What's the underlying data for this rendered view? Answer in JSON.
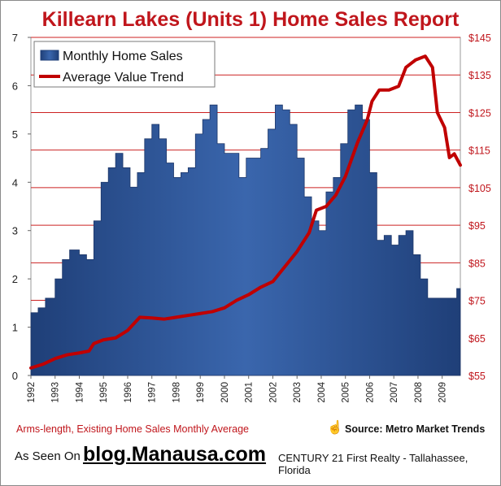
{
  "chart_data": {
    "type": "bar+line",
    "title": "Killearn Lakes (Units 1) Home Sales Report",
    "legend": [
      "Monthly Home Sales",
      "Average Value Trend"
    ],
    "legend_position": "top-left",
    "x_tick_labels": [
      "1992",
      "1993",
      "1994",
      "1995",
      "1996",
      "1997",
      "1998",
      "1999",
      "2000",
      "2001",
      "2002",
      "2003",
      "2004",
      "2005",
      "2006",
      "2007",
      "2008",
      "2009"
    ],
    "x_range": [
      1992.0,
      2009.75
    ],
    "y_left_ticks": [
      "0",
      "1",
      "2",
      "3",
      "4",
      "5",
      "6",
      "7"
    ],
    "y_left_range": [
      0,
      7
    ],
    "y_right_ticks": [
      "$55",
      "$65",
      "$75",
      "$85",
      "$95",
      "$105",
      "$115",
      "$125",
      "$135",
      "$145"
    ],
    "y_right_range": [
      55,
      145
    ],
    "gridlines": "horizontal, right axis",
    "series": [
      {
        "name": "Monthly Home Sales",
        "kind": "area",
        "color": "#2f5597",
        "points": [
          [
            1992.0,
            1.3
          ],
          [
            1992.3,
            1.4
          ],
          [
            1992.6,
            1.6
          ],
          [
            1993.0,
            2.0
          ],
          [
            1993.3,
            2.4
          ],
          [
            1993.6,
            2.6
          ],
          [
            1994.0,
            2.5
          ],
          [
            1994.3,
            2.4
          ],
          [
            1994.6,
            3.2
          ],
          [
            1994.9,
            4.0
          ],
          [
            1995.2,
            4.3
          ],
          [
            1995.5,
            4.6
          ],
          [
            1995.8,
            4.3
          ],
          [
            1996.1,
            3.9
          ],
          [
            1996.4,
            4.2
          ],
          [
            1996.7,
            4.9
          ],
          [
            1997.0,
            5.2
          ],
          [
            1997.3,
            4.9
          ],
          [
            1997.6,
            4.4
          ],
          [
            1997.9,
            4.1
          ],
          [
            1998.2,
            4.2
          ],
          [
            1998.5,
            4.3
          ],
          [
            1998.8,
            5.0
          ],
          [
            1999.1,
            5.3
          ],
          [
            1999.4,
            5.6
          ],
          [
            1999.7,
            4.8
          ],
          [
            2000.0,
            4.6
          ],
          [
            2000.3,
            4.6
          ],
          [
            2000.6,
            4.1
          ],
          [
            2000.9,
            4.5
          ],
          [
            2001.2,
            4.5
          ],
          [
            2001.5,
            4.7
          ],
          [
            2001.8,
            5.1
          ],
          [
            2002.1,
            5.6
          ],
          [
            2002.4,
            5.5
          ],
          [
            2002.7,
            5.2
          ],
          [
            2003.0,
            4.5
          ],
          [
            2003.3,
            3.7
          ],
          [
            2003.6,
            3.2
          ],
          [
            2003.9,
            3.0
          ],
          [
            2004.2,
            3.8
          ],
          [
            2004.5,
            4.1
          ],
          [
            2004.8,
            4.8
          ],
          [
            2005.1,
            5.5
          ],
          [
            2005.4,
            5.6
          ],
          [
            2005.7,
            5.3
          ],
          [
            2006.0,
            4.2
          ],
          [
            2006.3,
            2.8
          ],
          [
            2006.6,
            2.9
          ],
          [
            2006.9,
            2.7
          ],
          [
            2007.2,
            2.9
          ],
          [
            2007.5,
            3.0
          ],
          [
            2007.8,
            2.5
          ],
          [
            2008.1,
            2.0
          ],
          [
            2008.4,
            1.6
          ],
          [
            2008.7,
            1.6
          ],
          [
            2009.0,
            1.6
          ],
          [
            2009.3,
            1.6
          ],
          [
            2009.6,
            1.8
          ]
        ]
      },
      {
        "name": "Average Value Trend",
        "kind": "line",
        "color": "#c00000",
        "points": [
          [
            1992.0,
            57
          ],
          [
            1992.5,
            58
          ],
          [
            1993.0,
            59.5
          ],
          [
            1993.5,
            60.5
          ],
          [
            1994.0,
            61
          ],
          [
            1994.4,
            61.5
          ],
          [
            1994.6,
            63.5
          ],
          [
            1995.0,
            64.5
          ],
          [
            1995.5,
            65
          ],
          [
            1996.0,
            67
          ],
          [
            1996.5,
            70.5
          ],
          [
            1997.0,
            70.3
          ],
          [
            1997.5,
            70
          ],
          [
            1998.0,
            70.5
          ],
          [
            1998.5,
            71
          ],
          [
            1999.0,
            71.5
          ],
          [
            1999.5,
            72
          ],
          [
            2000.0,
            73
          ],
          [
            2000.5,
            75
          ],
          [
            2001.0,
            76.5
          ],
          [
            2001.5,
            78.5
          ],
          [
            2002.0,
            80
          ],
          [
            2002.5,
            84
          ],
          [
            2003.0,
            88
          ],
          [
            2003.5,
            93
          ],
          [
            2003.8,
            99
          ],
          [
            2004.2,
            100
          ],
          [
            2004.6,
            103
          ],
          [
            2005.0,
            108
          ],
          [
            2005.5,
            117
          ],
          [
            2005.9,
            123
          ],
          [
            2006.1,
            128
          ],
          [
            2006.4,
            131
          ],
          [
            2006.8,
            131
          ],
          [
            2007.2,
            132
          ],
          [
            2007.5,
            137
          ],
          [
            2007.9,
            139
          ],
          [
            2008.3,
            140
          ],
          [
            2008.6,
            137
          ],
          [
            2008.8,
            125
          ],
          [
            2009.1,
            121
          ],
          [
            2009.3,
            113
          ],
          [
            2009.5,
            114
          ],
          [
            2009.75,
            111
          ]
        ]
      }
    ]
  },
  "footer": {
    "note": "Arms-length, Existing Home Sales Monthly Average",
    "source": "Source: Metro Market Trends",
    "seen_on": "As Seen On",
    "blog": "blog.Manausa.com",
    "brokerage": "CENTURY 21 First Realty - Tallahassee, Florida"
  }
}
